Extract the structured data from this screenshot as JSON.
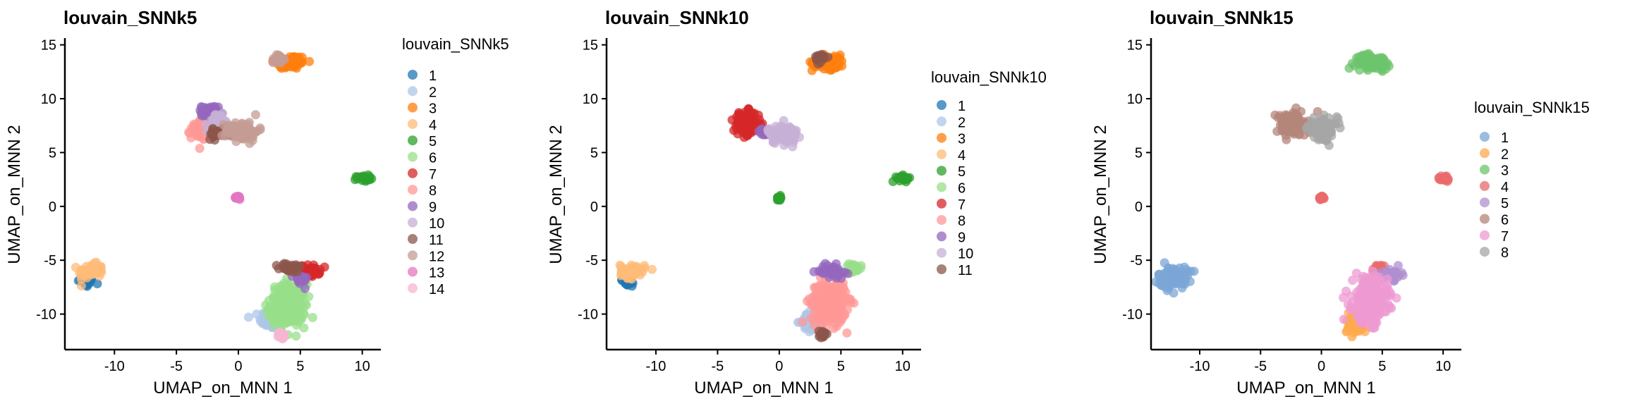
{
  "chart_data": [
    {
      "type": "scatter",
      "title": "louvain_SNNk5",
      "xlabel": "UMAP_on_MNN 1",
      "ylabel": "UMAP_on_MNN 2",
      "xlim": [
        -14,
        11.5
      ],
      "ylim": [
        -13.3,
        15.5
      ],
      "xticks": [
        -10,
        -5,
        0,
        5,
        10
      ],
      "yticks": [
        -10,
        -5,
        0,
        5,
        10,
        15
      ],
      "xtick_labels": [
        "-10",
        "-5",
        "0",
        "5",
        "10"
      ],
      "ytick_labels": [
        "-10",
        "-5",
        "0",
        "5",
        "10",
        "15"
      ],
      "grid": false,
      "legend_position": "right",
      "legend_title": "louvain_SNNk5",
      "series": [
        {
          "name": "1",
          "color": "#1F77B4",
          "blobs": [
            [
              -12.3,
              -7.0,
              0.6,
              0.45
            ]
          ]
        },
        {
          "name": "2",
          "color": "#AEC7E8",
          "blobs": [
            [
              2.6,
              -10.5,
              0.8,
              0.8
            ]
          ]
        },
        {
          "name": "3",
          "color": "#FF7F0E",
          "blobs": [
            [
              4.2,
              13.4,
              1.2,
              0.6
            ]
          ]
        },
        {
          "name": "4",
          "color": "#FFBB78",
          "blobs": [
            [
              -11.9,
              -6.0,
              0.9,
              0.6
            ]
          ]
        },
        {
          "name": "5",
          "color": "#2CA02C",
          "blobs": [
            [
              10.1,
              2.6,
              0.5,
              0.25
            ]
          ]
        },
        {
          "name": "6",
          "color": "#98DF8A",
          "blobs": [
            [
              4.0,
              -9.2,
              1.3,
              1.8
            ]
          ]
        },
        {
          "name": "7",
          "color": "#D62728",
          "blobs": [
            [
              5.8,
              -6.0,
              0.7,
              0.5
            ]
          ]
        },
        {
          "name": "8",
          "color": "#FF9896",
          "blobs": [
            [
              -2.9,
              7.3,
              0.8,
              0.9
            ]
          ]
        },
        {
          "name": "9",
          "color": "#9467BD",
          "blobs": [
            [
              -2.3,
              8.7,
              0.6,
              0.6
            ],
            [
              5.0,
              -6.8,
              0.5,
              0.5
            ]
          ]
        },
        {
          "name": "10",
          "color": "#C5B0D5",
          "blobs": [
            [
              -1.6,
              7.8,
              0.8,
              0.7
            ]
          ]
        },
        {
          "name": "11",
          "color": "#8C564B",
          "blobs": [
            [
              -1.6,
              6.7,
              0.8,
              0.4
            ],
            [
              4.2,
              -5.7,
              0.8,
              0.4
            ]
          ]
        },
        {
          "name": "12",
          "color": "#C49C94",
          "blobs": [
            [
              0.3,
              7.0,
              1.2,
              0.8
            ],
            [
              3.2,
              13.7,
              0.4,
              0.4
            ]
          ]
        },
        {
          "name": "13",
          "color": "#E377C2",
          "blobs": [
            [
              0.0,
              0.8,
              0.15,
              0.15
            ]
          ]
        },
        {
          "name": "14",
          "color": "#F7B6D2",
          "blobs": [
            [
              3.5,
              -12.0,
              0.25,
              0.3
            ]
          ]
        }
      ]
    },
    {
      "type": "scatter",
      "title": "louvain_SNNk10",
      "xlabel": "UMAP_on_MNN 1",
      "ylabel": "UMAP_on_MNN 2",
      "xlim": [
        -14,
        11.5
      ],
      "ylim": [
        -13.3,
        15.5
      ],
      "xticks": [
        -10,
        -5,
        0,
        5,
        10
      ],
      "yticks": [
        -10,
        -5,
        0,
        5,
        10,
        15
      ],
      "xtick_labels": [
        "-10",
        "-5",
        "0",
        "5",
        "10"
      ],
      "ytick_labels": [
        "-10",
        "-5",
        "0",
        "5",
        "10",
        "15"
      ],
      "grid": false,
      "legend_position": "right",
      "legend_title": "louvain_SNNk10",
      "series": [
        {
          "name": "1",
          "color": "#1F77B4",
          "blobs": [
            [
              -12.3,
              -7.0,
              0.6,
              0.45
            ]
          ]
        },
        {
          "name": "2",
          "color": "#AEC7E8",
          "blobs": [
            [
              2.7,
              -10.7,
              0.8,
              0.8
            ]
          ]
        },
        {
          "name": "3",
          "color": "#FF7F0E",
          "blobs": [
            [
              4.0,
              13.4,
              1.2,
              0.6
            ]
          ]
        },
        {
          "name": "4",
          "color": "#FFBB78",
          "blobs": [
            [
              -11.9,
              -6.0,
              0.9,
              0.6
            ]
          ]
        },
        {
          "name": "5",
          "color": "#2CA02C",
          "blobs": [
            [
              10.1,
              2.6,
              0.5,
              0.25
            ],
            [
              0.0,
              0.8,
              0.15,
              0.15
            ]
          ]
        },
        {
          "name": "6",
          "color": "#98DF8A",
          "blobs": [
            [
              6.0,
              -5.8,
              0.6,
              0.4
            ]
          ]
        },
        {
          "name": "7",
          "color": "#D62728",
          "blobs": [
            [
              -2.6,
              7.7,
              1.0,
              1.0
            ]
          ]
        },
        {
          "name": "8",
          "color": "#FF9896",
          "blobs": [
            [
              4.0,
              -8.9,
              1.3,
              1.8
            ]
          ]
        },
        {
          "name": "9",
          "color": "#9467BD",
          "blobs": [
            [
              4.3,
              -6.0,
              0.9,
              0.5
            ],
            [
              -1.2,
              6.9,
              0.4,
              0.3
            ]
          ]
        },
        {
          "name": "10",
          "color": "#C5B0D5",
          "blobs": [
            [
              0.3,
              6.7,
              1.1,
              0.8
            ]
          ]
        },
        {
          "name": "11",
          "color": "#8C564B",
          "blobs": [
            [
              3.4,
              13.8,
              0.4,
              0.4
            ],
            [
              3.5,
              -11.9,
              0.25,
              0.3
            ]
          ]
        }
      ]
    },
    {
      "type": "scatter",
      "title": "louvain_SNNk15",
      "xlabel": "UMAP_on_MNN 1",
      "ylabel": "UMAP_on_MNN 2",
      "xlim": [
        -14,
        11.5
      ],
      "ylim": [
        -13.3,
        15.5
      ],
      "xticks": [
        -10,
        -5,
        0,
        5,
        10
      ],
      "yticks": [
        -10,
        -5,
        0,
        5,
        10,
        15
      ],
      "xtick_labels": [
        "-10",
        "-5",
        "0",
        "5",
        "10"
      ],
      "ytick_labels": [
        "-10",
        "-5",
        "0",
        "5",
        "10",
        "15"
      ],
      "grid": false,
      "legend_position": "right",
      "legend_title": "louvain_SNNk15",
      "series": [
        {
          "name": "1",
          "color": "#7BA6D6",
          "blobs": [
            [
              -12.2,
              -6.6,
              1.1,
              0.9
            ]
          ]
        },
        {
          "name": "2",
          "color": "#FFA94D",
          "blobs": [
            [
              2.8,
              -10.8,
              0.8,
              0.9
            ]
          ]
        },
        {
          "name": "3",
          "color": "#6CC46C",
          "blobs": [
            [
              4.2,
              13.4,
              1.3,
              0.6
            ]
          ]
        },
        {
          "name": "4",
          "color": "#EA6B6B",
          "blobs": [
            [
              10.1,
              2.6,
              0.5,
              0.25
            ],
            [
              0.0,
              0.8,
              0.15,
              0.15
            ],
            [
              4.8,
              -5.8,
              0.6,
              0.4
            ]
          ]
        },
        {
          "name": "5",
          "color": "#B08FD0",
          "blobs": [
            [
              5.8,
              -6.3,
              0.7,
              0.5
            ]
          ]
        },
        {
          "name": "6",
          "color": "#B48579",
          "blobs": [
            [
              -2.5,
              7.6,
              1.1,
              1.0
            ]
          ]
        },
        {
          "name": "7",
          "color": "#EE99D1",
          "blobs": [
            [
              4.0,
              -8.7,
              1.3,
              1.9
            ]
          ]
        },
        {
          "name": "8",
          "color": "#A5A5A5",
          "blobs": [
            [
              0.1,
              7.2,
              1.1,
              0.9
            ]
          ]
        }
      ]
    }
  ]
}
